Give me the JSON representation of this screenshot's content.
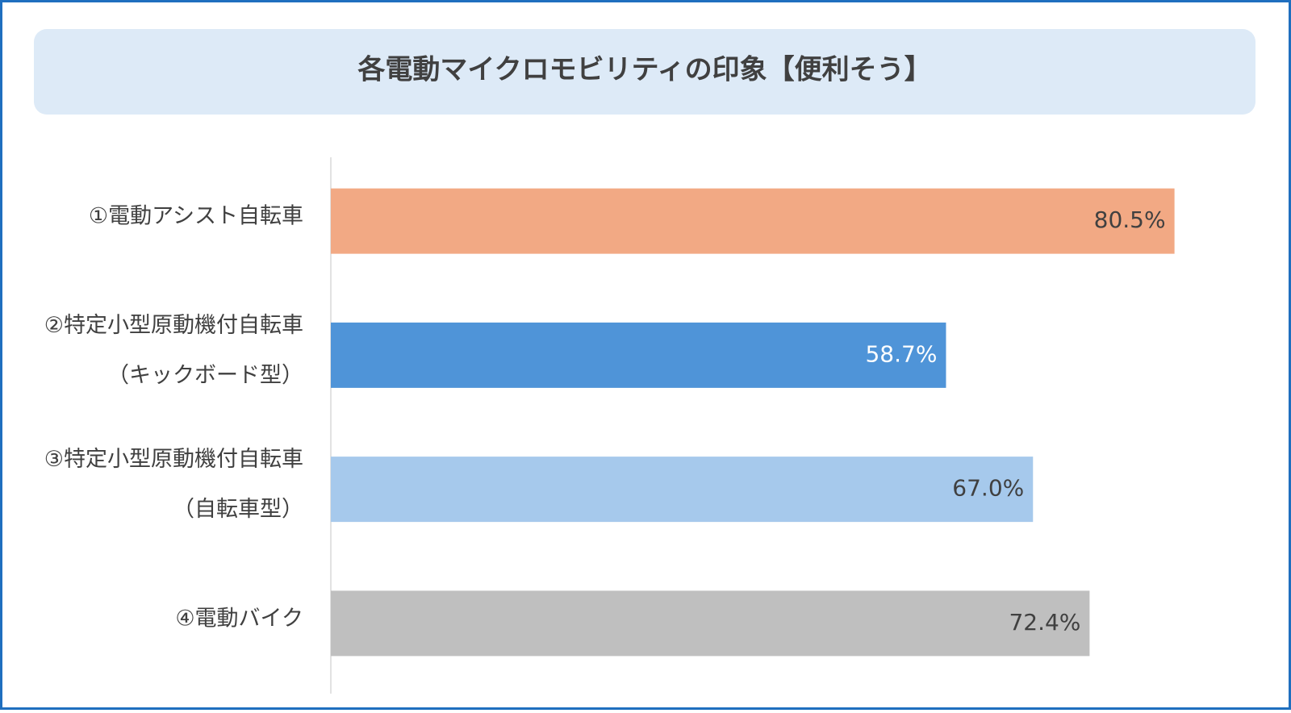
{
  "chart_data": {
    "type": "bar",
    "orientation": "horizontal",
    "title": "各電動マイクロモビリティの印象【便利そう】",
    "categories": [
      [
        "①電動アシスト自転車"
      ],
      [
        "②特定小型原動機付自転車",
        "（キックボード型）"
      ],
      [
        "③特定小型原動機付自転車",
        "（自転車型）"
      ],
      [
        "④電動バイク"
      ]
    ],
    "values": [
      80.5,
      58.7,
      67.0,
      72.4
    ],
    "value_labels": [
      "80.5%",
      "58.7%",
      "67.0%",
      "72.4%"
    ],
    "colors": [
      "#f2a984",
      "#4f94d8",
      "#a6c9ec",
      "#bfbfbf"
    ],
    "xlim": [
      0,
      90
    ],
    "grid": false
  }
}
